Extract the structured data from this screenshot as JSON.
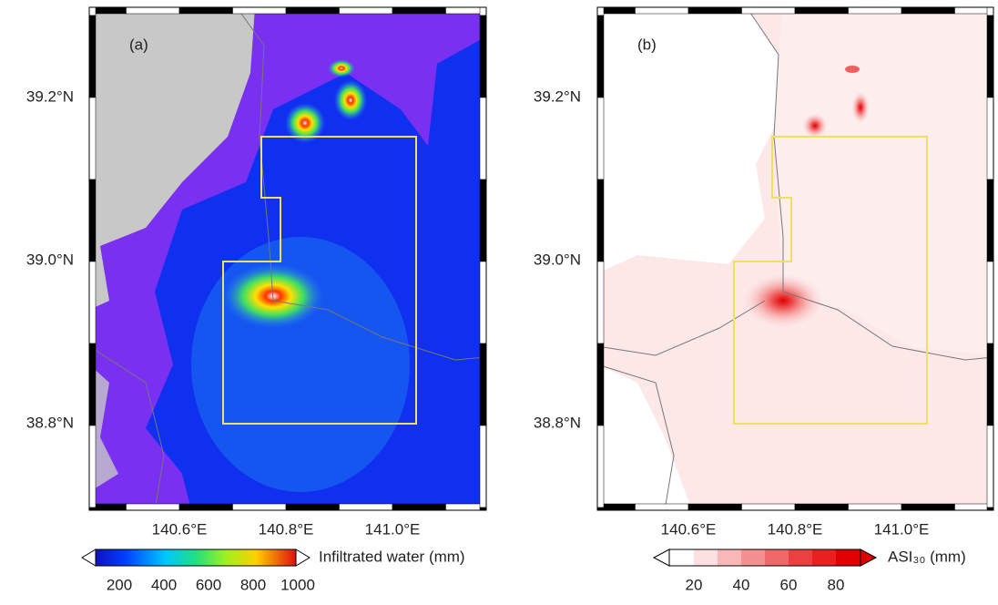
{
  "axes": {
    "yticks": [
      "39.2°N",
      "39.0°N",
      "38.8°N"
    ],
    "xticks": [
      "140.6°E",
      "140.8°E",
      "141.0°E"
    ]
  },
  "panels": [
    {
      "label": "(a)",
      "colorbar": {
        "label": "Infiltrated water (mm)",
        "ticks": [
          "200",
          "400",
          "600",
          "800",
          "1000"
        ]
      }
    },
    {
      "label": "(b)",
      "colorbar": {
        "label": "ASI₃₀ (mm)",
        "ticks": [
          "20",
          "40",
          "60",
          "80"
        ]
      }
    }
  ]
}
